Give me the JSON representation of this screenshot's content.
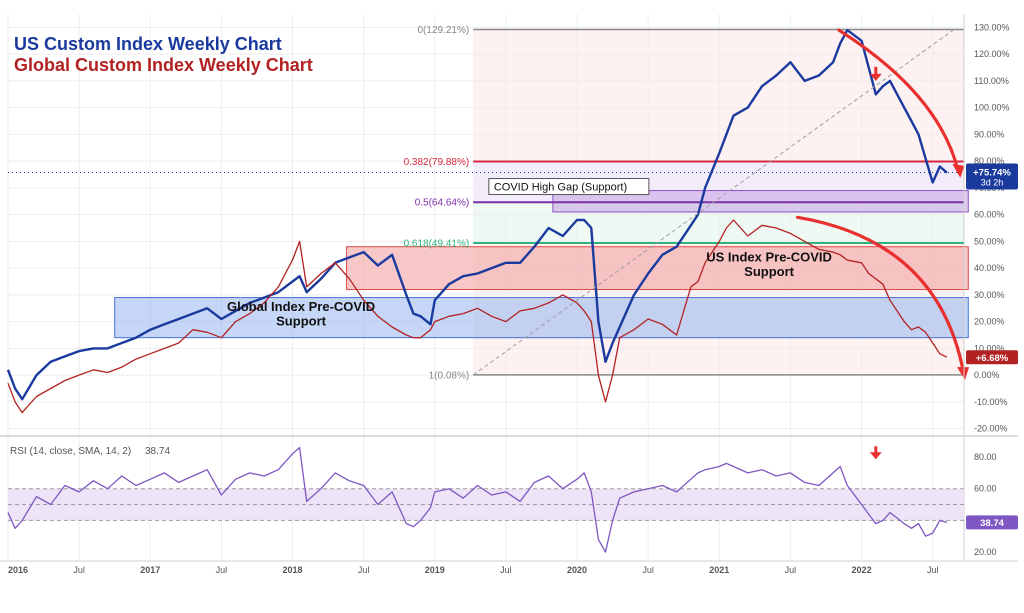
{
  "chart_data": [
    {
      "type": "line",
      "title": "US Custom Index Weekly Chart",
      "subtitle": "Global Custom Index Weekly Chart",
      "ylim": [
        -22,
        135
      ],
      "xlim": [
        2016.0,
        2022.72
      ],
      "y_ticks": [
        "130.00%",
        "120.00%",
        "110.00%",
        "100.00%",
        "90.00%",
        "80.00%",
        "70.00%",
        "60.00%",
        "50.00%",
        "40.00%",
        "30.00%",
        "20.00%",
        "10.00%",
        "0.00%",
        "-10.00%",
        "-20.00%"
      ],
      "y_tick_values": [
        130,
        120,
        110,
        100,
        90,
        80,
        70,
        60,
        50,
        40,
        30,
        20,
        10,
        0,
        -10,
        -20
      ],
      "x_ticks": [
        {
          "t": 2016.0,
          "label": "2016",
          "bold": true
        },
        {
          "t": 2016.5,
          "label": "Jul",
          "bold": false
        },
        {
          "t": 2017.0,
          "label": "2017",
          "bold": true
        },
        {
          "t": 2017.5,
          "label": "Jul",
          "bold": false
        },
        {
          "t": 2018.0,
          "label": "2018",
          "bold": true
        },
        {
          "t": 2018.5,
          "label": "Jul",
          "bold": false
        },
        {
          "t": 2019.0,
          "label": "2019",
          "bold": true
        },
        {
          "t": 2019.5,
          "label": "Jul",
          "bold": false
        },
        {
          "t": 2020.0,
          "label": "2020",
          "bold": true
        },
        {
          "t": 2020.5,
          "label": "Jul",
          "bold": false
        },
        {
          "t": 2021.0,
          "label": "2021",
          "bold": true
        },
        {
          "t": 2021.5,
          "label": "Jul",
          "bold": false
        },
        {
          "t": 2022.0,
          "label": "2022",
          "bold": true
        },
        {
          "t": 2022.5,
          "label": "Jul",
          "bold": false
        }
      ],
      "grid": true,
      "series": [
        {
          "name": "US Custom Index Weekly Chart",
          "color": "#1a3a9e",
          "x": [
            2016.0,
            2016.05,
            2016.1,
            2016.2,
            2016.3,
            2016.4,
            2016.5,
            2016.6,
            2016.7,
            2016.8,
            2016.9,
            2017.0,
            2017.1,
            2017.2,
            2017.3,
            2017.4,
            2017.5,
            2017.6,
            2017.7,
            2017.8,
            2017.9,
            2018.0,
            2018.05,
            2018.1,
            2018.2,
            2018.3,
            2018.4,
            2018.5,
            2018.6,
            2018.7,
            2018.8,
            2018.85,
            2018.9,
            2018.97,
            2019.0,
            2019.1,
            2019.2,
            2019.3,
            2019.4,
            2019.5,
            2019.6,
            2019.7,
            2019.8,
            2019.9,
            2020.0,
            2020.05,
            2020.1,
            2020.15,
            2020.2,
            2020.25,
            2020.3,
            2020.4,
            2020.5,
            2020.6,
            2020.7,
            2020.8,
            2020.85,
            2020.9,
            2021.0,
            2021.05,
            2021.1,
            2021.2,
            2021.3,
            2021.4,
            2021.5,
            2021.6,
            2021.7,
            2021.8,
            2021.85,
            2021.9,
            2022.0,
            2022.05,
            2022.1,
            2022.15,
            2022.2,
            2022.3,
            2022.35,
            2022.4,
            2022.45,
            2022.5,
            2022.55,
            2022.6
          ],
          "y": [
            2,
            -5,
            -9,
            0,
            5,
            7,
            9,
            10,
            10,
            12,
            14,
            17,
            19,
            21,
            23,
            25,
            21,
            24,
            27,
            29,
            31,
            35,
            37,
            31,
            36,
            42,
            44,
            46,
            41,
            45,
            30,
            23,
            22,
            19,
            28,
            34,
            37,
            38,
            40,
            42,
            42,
            48,
            55,
            52,
            58,
            58,
            55,
            20,
            5,
            12,
            18,
            30,
            38,
            45,
            48,
            56,
            60,
            70,
            83,
            90,
            97,
            100,
            108,
            112,
            117,
            110,
            112,
            117,
            124,
            129,
            125,
            115,
            105,
            108,
            110,
            100,
            95,
            90,
            81,
            72,
            78,
            75.7
          ]
        },
        {
          "name": "Global Custom Index Weekly Chart",
          "color": "#b22222",
          "x": [
            2016.0,
            2016.05,
            2016.1,
            2016.2,
            2016.3,
            2016.4,
            2016.5,
            2016.6,
            2016.7,
            2016.8,
            2016.9,
            2017.0,
            2017.1,
            2017.2,
            2017.3,
            2017.4,
            2017.5,
            2017.6,
            2017.7,
            2017.8,
            2017.9,
            2018.0,
            2018.05,
            2018.1,
            2018.2,
            2018.3,
            2018.4,
            2018.5,
            2018.6,
            2018.7,
            2018.8,
            2018.85,
            2018.9,
            2018.97,
            2019.0,
            2019.1,
            2019.2,
            2019.3,
            2019.4,
            2019.5,
            2019.6,
            2019.7,
            2019.8,
            2019.9,
            2020.0,
            2020.05,
            2020.1,
            2020.15,
            2020.2,
            2020.25,
            2020.3,
            2020.4,
            2020.5,
            2020.6,
            2020.7,
            2020.8,
            2020.85,
            2020.9,
            2021.0,
            2021.05,
            2021.1,
            2021.2,
            2021.3,
            2021.4,
            2021.5,
            2021.6,
            2021.7,
            2021.8,
            2021.85,
            2021.9,
            2022.0,
            2022.05,
            2022.1,
            2022.15,
            2022.2,
            2022.3,
            2022.35,
            2022.4,
            2022.45,
            2022.5,
            2022.55,
            2022.6
          ],
          "y": [
            -3,
            -10,
            -14,
            -8,
            -5,
            -2,
            0,
            2,
            1,
            3,
            6,
            8,
            10,
            12,
            17,
            16,
            14,
            20,
            23,
            27,
            33,
            43,
            50,
            33,
            38,
            42,
            36,
            28,
            22,
            18,
            15,
            14,
            14,
            17,
            20,
            22,
            23,
            25,
            22,
            20,
            24,
            25,
            27,
            30,
            27,
            24,
            20,
            0,
            -10,
            0,
            14,
            17,
            21,
            19,
            15,
            33,
            35,
            42,
            50,
            55,
            58,
            52,
            56,
            55,
            53,
            50,
            47,
            46,
            45,
            43,
            42,
            38,
            36,
            34,
            28,
            20,
            17,
            18,
            16,
            12,
            8,
            6.7
          ]
        }
      ],
      "fib_levels": [
        {
          "label": "0(129.21%)",
          "value": 129.21,
          "color": "#888888"
        },
        {
          "label": "0.382(79.88%)",
          "value": 79.88,
          "color": "#d7263d"
        },
        {
          "label": "0.5(64.64%)",
          "value": 64.64,
          "color": "#7b2fa8"
        },
        {
          "label": "0.618(49.41%)",
          "value": 49.41,
          "color": "#2db57a"
        },
        {
          "label": "1(0.08%)",
          "value": 0.08,
          "color": "#888888"
        }
      ],
      "zones": [
        {
          "label": "COVID High Gap (Support)",
          "x0": 2019.83,
          "x1": 2022.75,
          "y0": 61,
          "y1": 69,
          "color": "#c9a8e6",
          "border": "#8a4fc2"
        },
        {
          "label": "US Index Pre-COVID Support",
          "x0": 2018.38,
          "x1": 2022.75,
          "y0": 32,
          "y1": 48,
          "color": "#f4a3a3",
          "border": "#d94848"
        },
        {
          "label": "Global Index Pre-COVID Support",
          "x0": 2016.75,
          "x1": 2022.75,
          "y0": 14,
          "y1": 29,
          "color": "#9fbbf0",
          "border": "#4472d8"
        }
      ],
      "last_values": [
        {
          "label": "+75.74%",
          "sub": "3d 2h",
          "value": 75.74,
          "color": "#1a3a9e"
        },
        {
          "label": "+6.68%",
          "value": 6.68,
          "color": "#b22222"
        }
      ]
    },
    {
      "type": "line",
      "title": "RSI (14, close, SMA, 14, 2)",
      "value_label": "38.74",
      "ylim": [
        15,
        92
      ],
      "y_ticks": [
        "80.00",
        "60.00",
        "40.00",
        "20.00"
      ],
      "y_tick_values": [
        80,
        60,
        40,
        20
      ],
      "band": [
        40,
        60
      ],
      "mid_line": 50,
      "series": [
        {
          "color": "#7e57c2",
          "x": [
            2016.0,
            2016.05,
            2016.1,
            2016.2,
            2016.3,
            2016.4,
            2016.5,
            2016.6,
            2016.7,
            2016.8,
            2016.9,
            2017.0,
            2017.1,
            2017.2,
            2017.3,
            2017.4,
            2017.5,
            2017.6,
            2017.7,
            2017.8,
            2017.9,
            2018.0,
            2018.05,
            2018.1,
            2018.2,
            2018.3,
            2018.4,
            2018.5,
            2018.6,
            2018.7,
            2018.8,
            2018.85,
            2018.9,
            2018.97,
            2019.0,
            2019.1,
            2019.2,
            2019.3,
            2019.4,
            2019.5,
            2019.6,
            2019.7,
            2019.8,
            2019.9,
            2020.0,
            2020.05,
            2020.1,
            2020.15,
            2020.2,
            2020.25,
            2020.3,
            2020.4,
            2020.5,
            2020.6,
            2020.7,
            2020.8,
            2020.85,
            2020.9,
            2021.0,
            2021.05,
            2021.1,
            2021.2,
            2021.3,
            2021.4,
            2021.5,
            2021.6,
            2021.7,
            2021.8,
            2021.85,
            2021.9,
            2022.0,
            2022.05,
            2022.1,
            2022.15,
            2022.2,
            2022.3,
            2022.35,
            2022.4,
            2022.45,
            2022.5,
            2022.55,
            2022.6
          ],
          "y": [
            45,
            35,
            40,
            55,
            50,
            62,
            58,
            65,
            60,
            68,
            62,
            66,
            70,
            64,
            68,
            72,
            56,
            66,
            70,
            68,
            72,
            82,
            86,
            52,
            60,
            70,
            65,
            62,
            50,
            58,
            38,
            36,
            40,
            48,
            58,
            60,
            54,
            62,
            56,
            58,
            52,
            64,
            68,
            60,
            66,
            70,
            58,
            28,
            20,
            40,
            54,
            58,
            60,
            62,
            58,
            66,
            70,
            72,
            74,
            76,
            74,
            70,
            72,
            68,
            70,
            64,
            62,
            70,
            74,
            62,
            50,
            44,
            38,
            40,
            45,
            38,
            35,
            38,
            30,
            32,
            40,
            38.74
          ]
        }
      ]
    }
  ]
}
